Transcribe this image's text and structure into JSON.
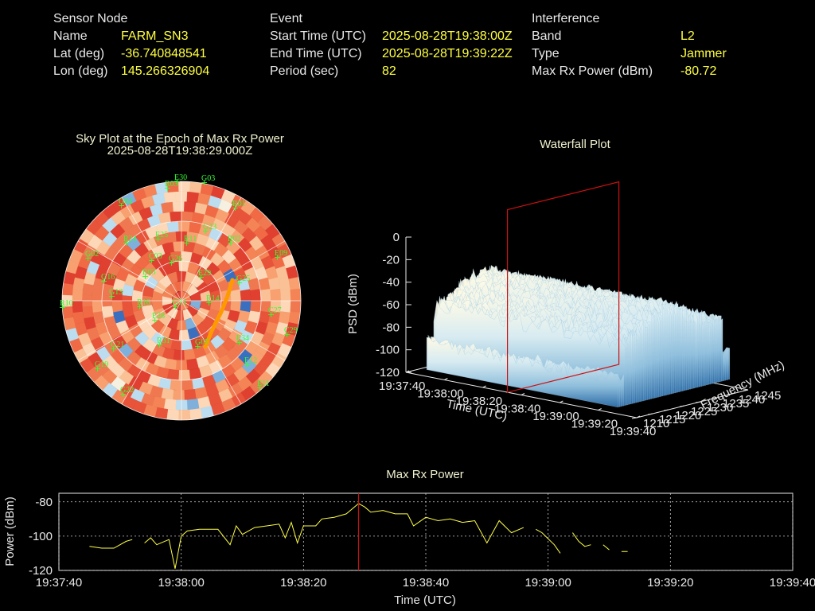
{
  "header": {
    "sensor": {
      "heading": "Sensor Node",
      "rows": [
        {
          "label": "Name",
          "value": "FARM_SN3"
        },
        {
          "label": "Lat (deg)",
          "value": "-36.740848541"
        },
        {
          "label": "Lon (deg)",
          "value": "145.266326904"
        }
      ]
    },
    "event": {
      "heading": "Event",
      "rows": [
        {
          "label": "Start Time (UTC)",
          "value": "2025-08-28T19:38:00Z"
        },
        {
          "label": "End Time (UTC)",
          "value": "2025-08-28T19:39:22Z"
        },
        {
          "label": "Period (sec)",
          "value": "82"
        }
      ]
    },
    "interference": {
      "heading": "Interference",
      "rows": [
        {
          "label": "Band",
          "value": "L2"
        },
        {
          "label": "Type",
          "value": "Jammer"
        },
        {
          "label": "Max Rx Power (dBm)",
          "value": "-80.72"
        }
      ]
    }
  },
  "colors": {
    "background": "#000000",
    "label_text": "#e8e8e8",
    "value_text": "#ffff40",
    "satellite_labels": "#33ff33",
    "cursor_line": "#cc1111",
    "power_trace": "#ffff44",
    "jammer_track": "#ff9900"
  },
  "chart_data": [
    {
      "type": "heatmap",
      "title": "Sky Plot at the Epoch of Max Rx Power",
      "subtitle": "2025-08-28T19:38:29.000Z",
      "satellites": [
        "E30",
        "G03",
        "R03",
        "G04",
        "R01",
        "G23",
        "R02",
        "E25",
        "G02",
        "E09",
        "G16",
        "R03",
        "E29",
        "G25",
        "G13",
        "R14",
        "C27",
        "R10",
        "R16",
        "G31",
        "E28",
        "E34",
        "C29",
        "G21",
        "R31",
        "G07",
        "E12",
        "G19",
        "G22",
        "E11",
        "R11",
        "G26",
        "R24",
        "C03"
      ]
    },
    {
      "type": "area",
      "title": "Waterfall Plot",
      "zlabel": "PSD (dBm)",
      "xlabel": "Time (UTC)",
      "ylabel": "Frequency (MHz)",
      "z_ticks": [
        "0",
        "-20",
        "-40",
        "-60",
        "-80",
        "-100",
        "-120"
      ],
      "time_ticks": [
        "19:37:40",
        "19:38:00",
        "19:38:20",
        "19:38:40",
        "19:39:00",
        "19:39:20",
        "19:39:40"
      ],
      "freq_ticks": [
        "1210",
        "1215",
        "1220",
        "1225",
        "1230",
        "1235",
        "1240",
        "1245"
      ],
      "zlim": [
        -120,
        0
      ],
      "freq_range": [
        1210,
        1245
      ]
    },
    {
      "type": "line",
      "title": "Max Rx Power",
      "xlabel": "Time (UTC)",
      "ylabel": "Power (dBm)",
      "x_ticks": [
        "19:37:40",
        "19:38:00",
        "19:38:20",
        "19:38:40",
        "19:39:00",
        "19:39:20",
        "19:39:40"
      ],
      "y_ticks": [
        "-80",
        "-100",
        "-120"
      ],
      "xlim": [
        "19:37:40",
        "19:39:40"
      ],
      "ylim": [
        -120,
        -75
      ],
      "grid": true,
      "marker_time": "19:38:29",
      "x": [
        "19:37:45",
        "19:37:47",
        "19:37:49",
        "19:37:51",
        "19:37:52",
        "19:37:54",
        "19:37:55",
        "19:37:56",
        "19:37:58",
        "19:37:59",
        "19:38:00",
        "19:38:01",
        "19:38:03",
        "19:38:05",
        "19:38:06",
        "19:38:08",
        "19:38:09",
        "19:38:10",
        "19:38:12",
        "19:38:14",
        "19:38:16",
        "19:38:17",
        "19:38:18",
        "19:38:19",
        "19:38:20",
        "19:38:22",
        "19:38:23",
        "19:38:25",
        "19:38:27",
        "19:38:29",
        "19:38:30",
        "19:38:31",
        "19:38:33",
        "19:38:35",
        "19:38:37",
        "19:38:38",
        "19:38:40",
        "19:38:42",
        "19:38:44",
        "19:38:46",
        "19:38:48",
        "19:38:50",
        "19:38:52",
        "19:38:54",
        "19:38:56",
        "19:38:58",
        "19:38:59",
        "19:39:01",
        "19:39:02",
        "19:39:04",
        "19:39:05",
        "19:39:06",
        "19:39:07",
        "19:39:09",
        "19:39:10",
        "19:39:12",
        "19:39:13"
      ],
      "y": [
        -106,
        -107,
        -107,
        -103,
        -102,
        -104,
        -101,
        -105,
        -102,
        -119,
        -100,
        -97,
        -96,
        -96,
        -96,
        -105,
        -94,
        -99,
        -95,
        -94,
        -93,
        -101,
        -92,
        -104,
        -94,
        -94,
        -90,
        -89,
        -87,
        -81,
        -83,
        -86,
        -85,
        -87,
        -87,
        -94,
        -89,
        -91,
        -90,
        -92,
        -91,
        -104,
        -91,
        -98,
        -95,
        -96,
        -98,
        -105,
        -110,
        -98,
        -103,
        -106,
        -105,
        -105,
        -108,
        -109,
        -109
      ],
      "gaps_after": [
        "19:37:52",
        "19:38:56",
        "19:39:02",
        "19:39:07",
        "19:39:10"
      ]
    }
  ]
}
